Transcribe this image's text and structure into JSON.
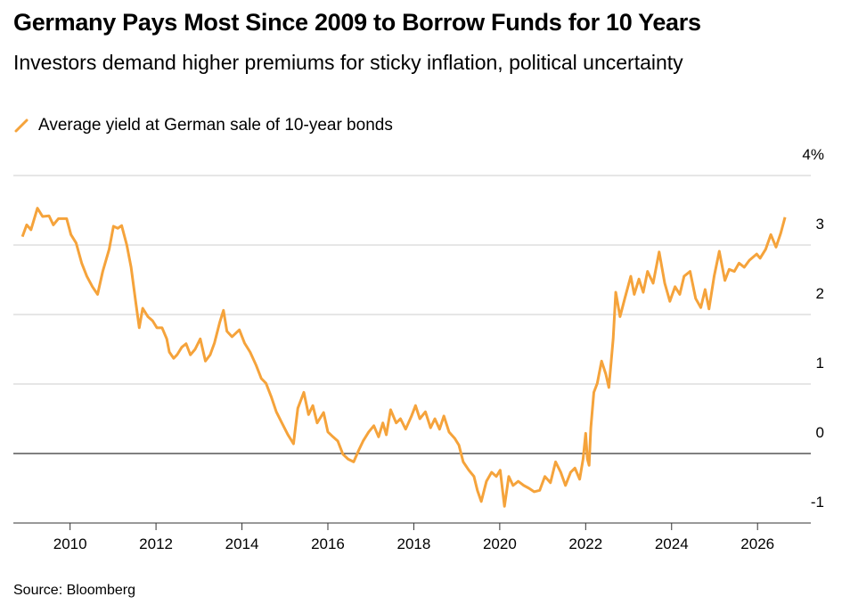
{
  "chart_data": {
    "type": "line",
    "title": "Germany Pays Most Since 2009 to Borrow Funds for 10 Years",
    "subtitle": "Investors demand higher premiums for sticky inflation, political uncertainty",
    "source": "Source: Bloomberg",
    "x": [
      2008.89,
      2008.99,
      2009.09,
      2009.24,
      2009.36,
      2009.51,
      2009.61,
      2009.73,
      2009.92,
      2010.02,
      2010.14,
      2010.27,
      2010.39,
      2010.52,
      2010.64,
      2010.76,
      2010.91,
      2011.01,
      2011.11,
      2011.2,
      2011.32,
      2011.42,
      2011.53,
      2011.61,
      2011.69,
      2011.81,
      2011.92,
      2012.02,
      2012.14,
      2012.25,
      2012.31,
      2012.41,
      2012.49,
      2012.6,
      2012.7,
      2012.8,
      2012.91,
      2013.03,
      2013.15,
      2013.26,
      2013.36,
      2013.48,
      2013.57,
      2013.65,
      2013.77,
      2013.94,
      2014.06,
      2014.19,
      2014.33,
      2014.45,
      2014.56,
      2014.68,
      2014.8,
      2014.93,
      2015.07,
      2015.2,
      2015.3,
      2015.44,
      2015.55,
      2015.65,
      2015.75,
      2015.9,
      2016.0,
      2016.12,
      2016.23,
      2016.35,
      2016.47,
      2016.6,
      2016.72,
      2016.82,
      2016.95,
      2017.07,
      2017.18,
      2017.28,
      2017.36,
      2017.46,
      2017.59,
      2017.69,
      2017.81,
      2017.94,
      2018.04,
      2018.14,
      2018.27,
      2018.39,
      2018.49,
      2018.6,
      2018.7,
      2018.82,
      2018.95,
      2019.05,
      2019.15,
      2019.28,
      2019.4,
      2019.48,
      2019.57,
      2019.69,
      2019.81,
      2019.92,
      2020.01,
      2020.11,
      2020.21,
      2020.31,
      2020.43,
      2020.56,
      2020.68,
      2020.8,
      2020.93,
      2021.05,
      2021.18,
      2021.3,
      2021.42,
      2021.53,
      2021.65,
      2021.75,
      2021.86,
      2021.94,
      2022.0,
      2022.04,
      2022.08,
      2022.12,
      2022.19,
      2022.27,
      2022.37,
      2022.47,
      2022.54,
      2022.64,
      2022.7,
      2022.8,
      2022.91,
      2023.05,
      2023.13,
      2023.24,
      2023.34,
      2023.44,
      2023.57,
      2023.71,
      2023.84,
      2023.96,
      2024.08,
      2024.19,
      2024.29,
      2024.43,
      2024.56,
      2024.68,
      2024.78,
      2024.87,
      2024.99,
      2025.11,
      2025.24,
      2025.34,
      2025.46,
      2025.57,
      2025.69,
      2025.81,
      2025.98,
      2026.06,
      2026.19,
      2026.31,
      2026.43,
      2026.54,
      2026.64
    ],
    "series": [
      {
        "name": "Average yield at German sale of 10-year bonds",
        "color": "#f5a33b",
        "values": [
          3.12,
          3.29,
          3.22,
          3.53,
          3.41,
          3.42,
          3.29,
          3.38,
          3.38,
          3.15,
          3.03,
          2.74,
          2.55,
          2.4,
          2.29,
          2.62,
          2.94,
          3.27,
          3.24,
          3.28,
          3.0,
          2.68,
          2.17,
          1.81,
          2.09,
          1.97,
          1.91,
          1.81,
          1.81,
          1.65,
          1.46,
          1.37,
          1.42,
          1.53,
          1.58,
          1.42,
          1.5,
          1.65,
          1.33,
          1.42,
          1.59,
          1.88,
          2.06,
          1.76,
          1.68,
          1.78,
          1.59,
          1.46,
          1.27,
          1.08,
          1.01,
          0.82,
          0.6,
          0.44,
          0.27,
          0.14,
          0.65,
          0.88,
          0.56,
          0.69,
          0.44,
          0.59,
          0.31,
          0.24,
          0.18,
          -0.01,
          -0.08,
          -0.12,
          0.05,
          0.18,
          0.31,
          0.4,
          0.24,
          0.44,
          0.27,
          0.63,
          0.44,
          0.5,
          0.35,
          0.53,
          0.69,
          0.5,
          0.6,
          0.37,
          0.5,
          0.35,
          0.54,
          0.31,
          0.22,
          0.12,
          -0.12,
          -0.24,
          -0.33,
          -0.53,
          -0.69,
          -0.4,
          -0.27,
          -0.33,
          -0.24,
          -0.76,
          -0.33,
          -0.46,
          -0.4,
          -0.46,
          -0.5,
          -0.55,
          -0.53,
          -0.33,
          -0.42,
          -0.12,
          -0.27,
          -0.46,
          -0.27,
          -0.21,
          -0.37,
          -0.08,
          0.29,
          -0.08,
          -0.17,
          0.37,
          0.88,
          1.01,
          1.33,
          1.14,
          0.95,
          1.65,
          2.32,
          1.97,
          2.23,
          2.55,
          2.29,
          2.51,
          2.32,
          2.62,
          2.45,
          2.9,
          2.45,
          2.19,
          2.4,
          2.29,
          2.55,
          2.62,
          2.23,
          2.1,
          2.36,
          2.08,
          2.55,
          2.91,
          2.49,
          2.65,
          2.62,
          2.74,
          2.68,
          2.78,
          2.87,
          2.81,
          2.94,
          3.15,
          2.97,
          3.17,
          3.4
        ]
      }
    ],
    "xlim": [
      2008.68,
      2027.24
    ],
    "xticks": [
      2010,
      2012,
      2014,
      2016,
      2018,
      2020,
      2022,
      2024,
      2026
    ],
    "ylim": [
      -1,
      4
    ],
    "yticks": [
      -1,
      0,
      1,
      2,
      3,
      {
        "value": 4,
        "label": "4%"
      }
    ],
    "grid": true
  }
}
